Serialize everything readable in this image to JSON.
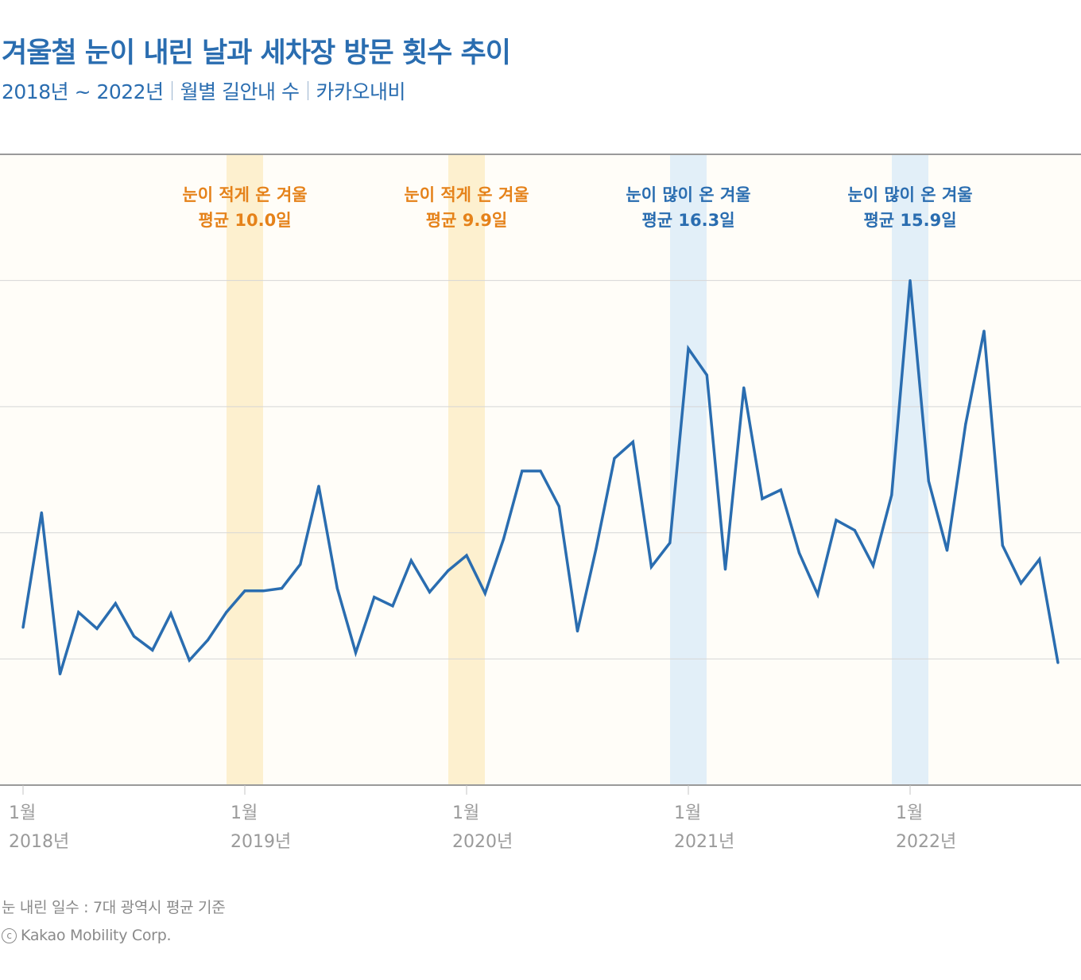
{
  "header": {
    "title": "겨울철 눈이 내린 날과 세차장 방문 횟수 추이",
    "subtitle_parts": [
      "2018년 ~ 2022년",
      "월별 길안내 수",
      "카카오내비"
    ]
  },
  "footer": {
    "source_note": "눈 내린 일수 : 7대 광역시 평균 기준",
    "copyright_symbol": "c",
    "copyright": "Kakao Mobility Corp."
  },
  "colors": {
    "line": "#2a6db0",
    "plot_background": "#fffdf8",
    "band_few_snow": "#fdf0cf",
    "band_much_snow": "#e2eff8",
    "label_few_snow": "#e5821a",
    "label_much_snow": "#2a6db0",
    "gridline": "#d6d6d6",
    "axis": "#9a9a9a",
    "tick_text": "#9a9a9a"
  },
  "chart_data": {
    "type": "line",
    "title": "겨울철 눈이 내린 날과 세차장 방문 횟수 추이",
    "subtitle": "2018년 ~ 2022년 | 월별 길안내 수 | 카카오내비",
    "xlabel": "",
    "ylabel": "",
    "y_unit_note": "y-axis unlabeled; values expressed in gridline index units (each gridline = 1 unit)",
    "ylim": [
      0,
      5
    ],
    "y_gridlines": [
      1,
      2,
      3,
      4,
      5
    ],
    "grid": true,
    "x_start": "2018-01",
    "x": [
      "2018-01",
      "2018-02",
      "2018-03",
      "2018-04",
      "2018-05",
      "2018-06",
      "2018-07",
      "2018-08",
      "2018-09",
      "2018-10",
      "2018-11",
      "2018-12",
      "2019-01",
      "2019-02",
      "2019-03",
      "2019-04",
      "2019-05",
      "2019-06",
      "2019-07",
      "2019-08",
      "2019-09",
      "2019-10",
      "2019-11",
      "2019-12",
      "2020-01",
      "2020-02",
      "2020-03",
      "2020-04",
      "2020-05",
      "2020-06",
      "2020-07",
      "2020-08",
      "2020-09",
      "2020-10",
      "2020-11",
      "2020-12",
      "2021-01",
      "2021-02",
      "2021-03",
      "2021-04",
      "2021-05",
      "2021-06",
      "2021-07",
      "2021-08",
      "2021-09",
      "2021-10",
      "2021-11",
      "2021-12",
      "2022-01",
      "2022-02",
      "2022-03",
      "2022-04",
      "2022-05",
      "2022-06",
      "2022-07",
      "2022-08",
      "2022-09"
    ],
    "series": [
      {
        "name": "월별 세차장 길안내 수",
        "values": [
          1.25,
          2.16,
          0.88,
          1.37,
          1.24,
          1.44,
          1.18,
          1.07,
          1.36,
          0.99,
          1.15,
          1.37,
          1.54,
          1.54,
          1.56,
          1.75,
          2.37,
          1.56,
          1.05,
          1.49,
          1.42,
          1.78,
          1.53,
          1.7,
          1.82,
          1.52,
          1.95,
          2.49,
          2.49,
          2.21,
          1.22,
          1.87,
          2.59,
          2.72,
          1.73,
          1.92,
          3.46,
          3.25,
          1.71,
          3.15,
          2.27,
          2.34,
          1.84,
          1.51,
          2.1,
          2.02,
          1.74,
          2.3,
          4.0,
          2.41,
          1.86,
          2.86,
          3.6,
          1.9,
          1.6,
          1.79,
          0.97
        ]
      }
    ],
    "x_ticks": [
      {
        "month_index": 0,
        "month": "1월",
        "year": "2018년"
      },
      {
        "month_index": 12,
        "month": "1월",
        "year": "2019년"
      },
      {
        "month_index": 24,
        "month": "1월",
        "year": "2020년"
      },
      {
        "month_index": 36,
        "month": "1월",
        "year": "2021년"
      },
      {
        "month_index": 48,
        "month": "1월",
        "year": "2022년"
      }
    ],
    "highlight_bands": [
      {
        "center_month_index": 12,
        "kind": "few",
        "line1": "눈이 적게 온 겨울",
        "line2": "평균 10.0일",
        "avg_snow_days": 10.0
      },
      {
        "center_month_index": 24,
        "kind": "few",
        "line1": "눈이 적게 온 겨울",
        "line2": "평균 9.9일",
        "avg_snow_days": 9.9
      },
      {
        "center_month_index": 36,
        "kind": "much",
        "line1": "눈이 많이 온 겨울",
        "line2": "평균 16.3일",
        "avg_snow_days": 16.3
      },
      {
        "center_month_index": 48,
        "kind": "much",
        "line1": "눈이 많이 온 겨울",
        "line2": "평균 15.9일",
        "avg_snow_days": 15.9
      }
    ],
    "legend": "none"
  }
}
